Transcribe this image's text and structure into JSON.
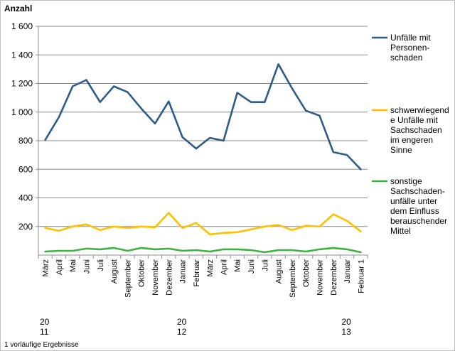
{
  "chart_data": {
    "type": "line",
    "ylabel": "Anzahl",
    "ylim": [
      0,
      1600
    ],
    "y_ticks": [
      "1 600",
      "1 400",
      "1 200",
      "1 000",
      "800",
      "600",
      "400",
      "200"
    ],
    "grid": "horizontal",
    "legend_placement": "right",
    "categories": [
      "März",
      "April",
      "Mai",
      "Juni",
      "Juli",
      "August",
      "September",
      "Oktober",
      "November",
      "Dezember",
      "Januar",
      "Februar",
      "März",
      "April",
      "Mai",
      "Juni",
      "Juli",
      "August",
      "September",
      "Oktober",
      "November",
      "Dezember",
      "Januar",
      "Februar 1"
    ],
    "year_labels": [
      {
        "lines": [
          "20",
          "11"
        ],
        "category_index": 0
      },
      {
        "lines": [
          "20",
          "12"
        ],
        "category_index": 10
      },
      {
        "lines": [
          "20",
          "13"
        ],
        "category_index": 22
      }
    ],
    "series": [
      {
        "name_lines": [
          "Unfälle mit",
          "Personen-",
          "schaden"
        ],
        "color": "#2e5c8a",
        "values": [
          805,
          965,
          1180,
          1225,
          1070,
          1180,
          1140,
          1025,
          920,
          1075,
          825,
          745,
          820,
          800,
          1135,
          1070,
          1070,
          1335,
          1165,
          1010,
          975,
          720,
          700,
          600
        ]
      },
      {
        "name_lines": [
          "schwerwiegend",
          "e Unfälle mit",
          "Sachschaden",
          "im engeren",
          "Sinne"
        ],
        "color": "#ffc000",
        "values": [
          190,
          170,
          200,
          215,
          175,
          200,
          190,
          200,
          195,
          295,
          190,
          225,
          145,
          155,
          160,
          180,
          200,
          210,
          175,
          205,
          200,
          285,
          240,
          165
        ]
      },
      {
        "name_lines": [
          "sonstige",
          "Sachschaden-",
          "unfälle unter",
          "dem Einfluss",
          "berauschender",
          "Mittel"
        ],
        "color": "#3cb33c",
        "values": [
          25,
          30,
          30,
          45,
          40,
          50,
          30,
          50,
          40,
          45,
          30,
          35,
          25,
          40,
          40,
          35,
          20,
          35,
          35,
          25,
          40,
          50,
          40,
          20
        ]
      }
    ],
    "footnote": "1 vorläufige Ergebnisse"
  }
}
